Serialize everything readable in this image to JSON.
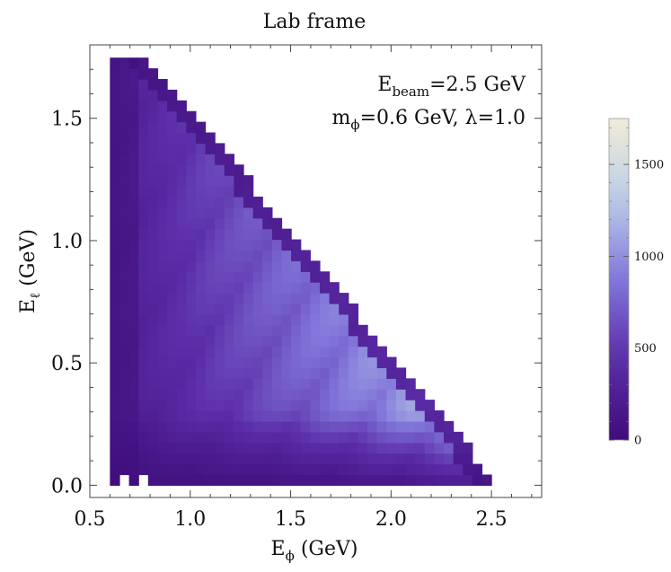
{
  "chart_data": {
    "type": "heatmap",
    "title": "Lab frame",
    "xlabel": {
      "base": "E",
      "sub": "ϕ",
      "rest": " (GeV)"
    },
    "ylabel": {
      "base": "E",
      "sub": "ℓ",
      "rest": " (GeV)"
    },
    "annotation": {
      "line1": {
        "base": "E",
        "sub": "beam",
        "rest": "=2.5 GeV"
      },
      "line2": {
        "base": "m",
        "sub": "ϕ",
        "rest": "=0.6 GeV, λ=1.0"
      }
    },
    "xlim": [
      0.5,
      2.75
    ],
    "ylim": [
      -0.05,
      1.8
    ],
    "xticks": [
      {
        "v": 0.5,
        "label": "0.5"
      },
      {
        "v": 1.0,
        "label": "1.0"
      },
      {
        "v": 1.5,
        "label": "1.5"
      },
      {
        "v": 2.0,
        "label": "2.0"
      },
      {
        "v": 2.5,
        "label": "2.5"
      }
    ],
    "yticks": [
      {
        "v": 0.0,
        "label": "0.0"
      },
      {
        "v": 0.5,
        "label": "0.5"
      },
      {
        "v": 1.0,
        "label": "1.0"
      },
      {
        "v": 1.5,
        "label": "1.5"
      }
    ],
    "bins": {
      "x_start": 0.6,
      "dx": 0.0475,
      "nx": 40,
      "y_start": 0.0,
      "dy": 0.0437,
      "ny": 40,
      "x_edge": 2.5,
      "cell_max": 1750
    },
    "colorbar": {
      "min": 0,
      "max": 1750,
      "ticks": [
        {
          "v": 0,
          "label": "0"
        },
        {
          "v": 500,
          "label": "500"
        },
        {
          "v": 1000,
          "label": "1000"
        },
        {
          "v": 1500,
          "label": "1500"
        }
      ],
      "minor_step": 100
    },
    "colormap": [
      "#3f0d7a",
      "#5b2da8",
      "#8277da",
      "#b9cde8",
      "#f2ecd8"
    ],
    "grid": false,
    "legend": "colorbar-right"
  }
}
